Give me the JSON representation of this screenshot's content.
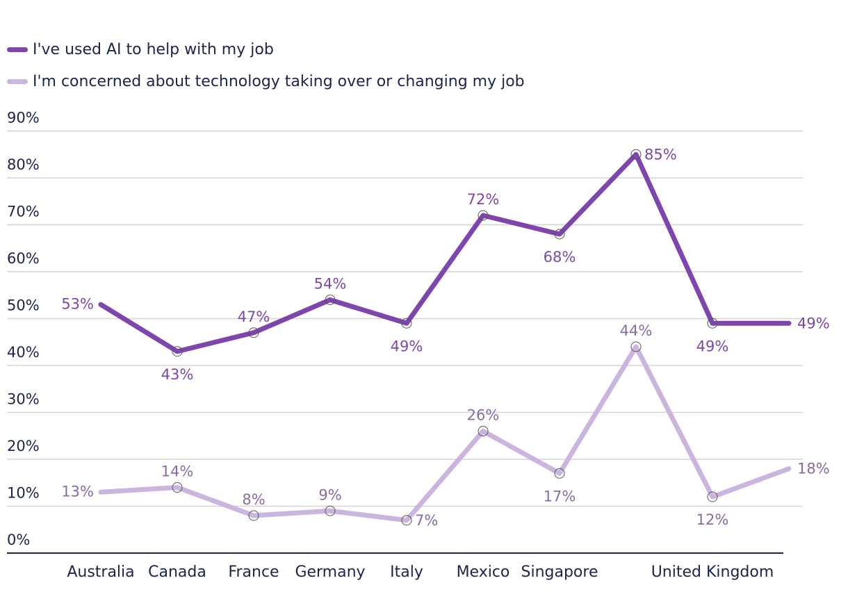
{
  "chart_data": {
    "type": "line",
    "categories": [
      "Australia",
      "Canada",
      "France",
      "Germany",
      "Italy",
      "Mexico",
      "Singapore",
      "",
      "United Kingdom",
      ""
    ],
    "series": [
      {
        "name": "I've used AI to help with my job",
        "color": "#7e45ad",
        "label_color": "#7e45ad",
        "values": [
          53,
          43,
          47,
          54,
          49,
          72,
          68,
          85,
          49,
          49
        ],
        "labels": [
          "53%",
          "43%",
          "47%",
          "54%",
          "49%",
          "72%",
          "68%",
          "85%",
          "49%",
          "49%"
        ]
      },
      {
        "name": "I'm concerned about technology taking over or changing my job",
        "color": "#cbb5df",
        "label_color": "#8a6aa6",
        "values": [
          13,
          14,
          8,
          9,
          7,
          26,
          17,
          44,
          12,
          18
        ],
        "labels": [
          "13%",
          "14%",
          "8%",
          "9%",
          "7%",
          "26%",
          "17%",
          "44%",
          "12%",
          "18%"
        ]
      }
    ],
    "y_ticks": [
      "0%",
      "10%",
      "20%",
      "30%",
      "40%",
      "50%",
      "60%",
      "70%",
      "80%",
      "90%"
    ],
    "ylim": [
      0,
      90
    ],
    "grid": true,
    "legend_position": "top-left",
    "axis_color": "#1a2450",
    "grid_color": "#d4d4d4"
  }
}
